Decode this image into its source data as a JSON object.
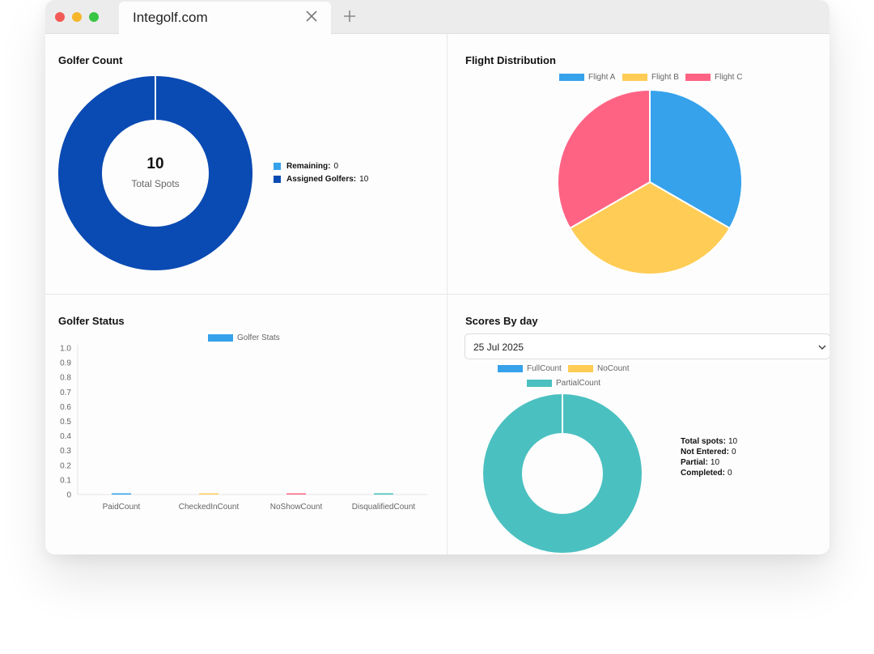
{
  "browser": {
    "tab_title": "Integolf.com"
  },
  "panels": {
    "golfer_count": {
      "title": "Golfer Count",
      "center_value": "10",
      "center_label": "Total Spots",
      "legend": [
        {
          "label": "Remaining:",
          "value": "0",
          "color": "#36a2eb"
        },
        {
          "label": "Assigned Golfers:",
          "value": "10",
          "color": "#0a4ab3"
        }
      ]
    },
    "flight_distribution": {
      "title": "Flight Distribution",
      "legend": [
        {
          "label": "Flight A",
          "color": "#36a2eb"
        },
        {
          "label": "Flight B",
          "color": "#ffcd56"
        },
        {
          "label": "Flight C",
          "color": "#ff6384"
        }
      ]
    },
    "golfer_status": {
      "title": "Golfer Status",
      "legend": [
        {
          "label": "Golfer Stats",
          "color": "#36a2eb"
        }
      ]
    },
    "scores_by_day": {
      "title": "Scores By day",
      "date_selected": "25 Jul 2025",
      "legend": [
        {
          "label": "FullCount",
          "color": "#36a2eb"
        },
        {
          "label": "NoCount",
          "color": "#ffcd56"
        },
        {
          "label": "PartialCount",
          "color": "#4bc0c0"
        }
      ],
      "stats": [
        {
          "label": "Total spots:",
          "value": "10"
        },
        {
          "label": "Not Entered:",
          "value": "0"
        },
        {
          "label": "Partial:",
          "value": "10"
        },
        {
          "label": "Completed:",
          "value": "0"
        }
      ]
    }
  },
  "chart_data": [
    {
      "type": "pie",
      "variant": "doughnut",
      "title": "Golfer Count",
      "categories": [
        "Remaining",
        "Assigned Golfers"
      ],
      "values": [
        0,
        10
      ],
      "colors": [
        "#36a2eb",
        "#0a4ab3"
      ]
    },
    {
      "type": "pie",
      "title": "Flight Distribution",
      "categories": [
        "Flight A",
        "Flight B",
        "Flight C"
      ],
      "values": [
        1,
        1,
        1
      ],
      "colors": [
        "#36a2eb",
        "#ffcd56",
        "#ff6384"
      ],
      "legend": "top"
    },
    {
      "type": "bar",
      "title": "Golfer Status",
      "categories": [
        "PaidCount",
        "CheckedInCount",
        "NoShowCount",
        "DisqualifiedCount"
      ],
      "series": [
        {
          "name": "Golfer Stats",
          "values": [
            0,
            0,
            0,
            0
          ]
        }
      ],
      "bar_colors": [
        "#36a2eb",
        "#ffcd56",
        "#ff6384",
        "#4bc0c0"
      ],
      "ylim": [
        0,
        1.0
      ],
      "yticks": [
        "0",
        "0.1",
        "0.2",
        "0.3",
        "0.4",
        "0.5",
        "0.6",
        "0.7",
        "0.8",
        "0.9",
        "1.0"
      ],
      "legend": "top",
      "grid": false
    },
    {
      "type": "pie",
      "variant": "doughnut",
      "title": "Scores By day",
      "categories": [
        "FullCount",
        "NoCount",
        "PartialCount"
      ],
      "values": [
        0,
        0,
        10
      ],
      "colors": [
        "#36a2eb",
        "#ffcd56",
        "#4bc0c0"
      ],
      "legend": "top"
    }
  ]
}
